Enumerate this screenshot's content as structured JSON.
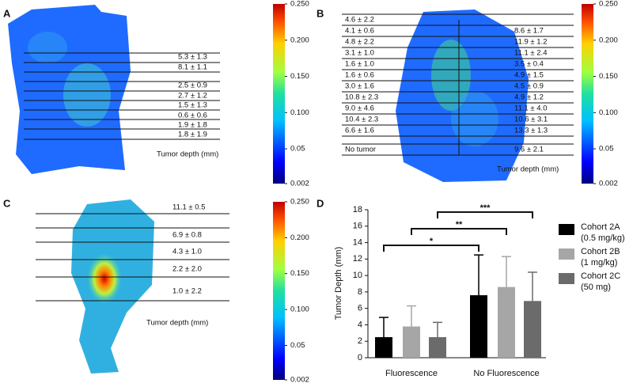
{
  "panels": [
    {
      "label": "A",
      "depths": [
        "5.3 ± 1.3",
        "8.1 ± 1.1",
        "2.5 ± 0.9",
        "2.7 ± 1.2",
        "1.5 ± 1.3",
        "0.6 ± 0.6",
        "1.9 ± 1.8",
        "1.8 ± 1.9"
      ],
      "depth_axis_label": "Tumor depth (mm)",
      "colorbar_range": [
        0.002,
        0.25
      ],
      "colorbar_ticks": [
        {
          "value": 0.25,
          "label": "0.250"
        },
        {
          "value": 0.2,
          "label": "0.200"
        },
        {
          "value": 0.15,
          "label": "0.150"
        },
        {
          "value": 0.1,
          "label": "0.100"
        },
        0.05,
        0.002
      ]
    },
    {
      "label": "B",
      "depths_left": [
        "4.6 ± 2.2",
        "4.1 ± 0.6",
        "4.8 ± 2.2",
        "3.1 ± 1.0",
        "1.6 ± 1.0",
        "1.6 ± 0.6",
        "3.0 ± 1.6",
        "10.8 ± 2.3",
        "9.0 ± 4.6",
        "10.4 ± 2.3",
        "6.6 ± 1.6",
        "No tumor"
      ],
      "depths_right": [
        "8.6 ± 1.7",
        "11.9 ± 1.2",
        "11.1 ± 2.4",
        "3.5 ± 0.4",
        "4.9 ± 1.5",
        "4.5 ± 0.9",
        "4.9 ± 1.2",
        "11.1 ± 4.0",
        "10.6 ± 3.1",
        "13.3 ± 1.3",
        "9.6 ± 2.1"
      ],
      "depth_axis_label": "Tumor depth (mm)",
      "colorbar_range": [
        0.002,
        0.25
      ],
      "colorbar_ticks": [
        {
          "value": 0.25,
          "label": "0.250"
        },
        {
          "value": 0.2,
          "label": "0.200"
        },
        {
          "value": 0.15,
          "label": "0.150"
        },
        {
          "value": 0.1,
          "label": "0.100"
        },
        0.05,
        0.002
      ]
    },
    {
      "label": "C",
      "depths": [
        "11.1 ± 0.5",
        "6.9 ± 0.8",
        "4.3 ± 1.0",
        "2.2 ± 2.0",
        "1.0 ± 2.2"
      ],
      "depth_axis_label": "Tumor depth (mm)",
      "colorbar_range": [
        0.002,
        0.25
      ],
      "colorbar_ticks": [
        {
          "value": 0.25,
          "label": "0.250"
        },
        {
          "value": 0.2,
          "label": "0.200"
        },
        {
          "value": 0.15,
          "label": "0.150"
        },
        {
          "value": 0.1,
          "label": "0.100"
        },
        0.05,
        0.002
      ]
    }
  ],
  "chart_data": {
    "type": "bar",
    "label": "D",
    "ylabel": "Tumor Depth (mm)",
    "categories": [
      "Fluorescence",
      "No Fluorescence"
    ],
    "series": [
      {
        "name": "Cohort 2A",
        "dose": "(0.5 mg/kg)",
        "color": "#000000",
        "values": [
          2.5,
          7.6
        ],
        "errors": [
          2.4,
          4.9
        ]
      },
      {
        "name": "Cohort 2B",
        "dose": "(1 mg/kg)",
        "color": "#a6a6a6",
        "values": [
          3.8,
          8.6
        ],
        "errors": [
          2.5,
          3.7
        ]
      },
      {
        "name": "Cohort 2C",
        "dose": "(50 mg)",
        "color": "#6b6b6b",
        "values": [
          2.5,
          6.9
        ],
        "errors": [
          1.8,
          3.5
        ]
      }
    ],
    "significance": [
      "*",
      "**",
      "***"
    ],
    "ylim": [
      0,
      18
    ],
    "yticks": [
      0,
      2,
      4,
      6,
      8,
      10,
      12,
      14,
      16,
      18
    ]
  }
}
